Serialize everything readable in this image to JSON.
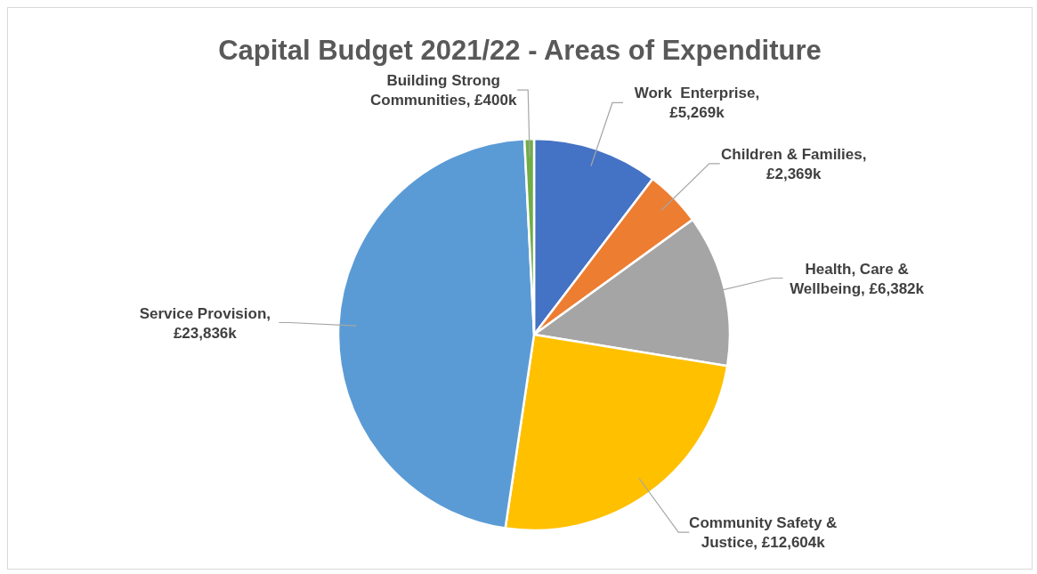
{
  "chart_data": {
    "type": "pie",
    "title": "Capital Budget 2021/22 - Areas of Expenditure",
    "categories": [
      "Work  Enterprise, £5,269k",
      "Children & Families, £2,369k",
      "Health, Care & Wellbeing, £6,382k",
      "Community Safety & Justice, £12,604k",
      "Service Provision, £23,836k",
      "Building Strong Communities, £400k"
    ],
    "values": [
      5269,
      2369,
      6382,
      12604,
      23836,
      400
    ],
    "colors": [
      "#4472c4",
      "#ed7d31",
      "#a5a5a5",
      "#ffc000",
      "#5b9bd5",
      "#70ad47"
    ],
    "legend": false
  }
}
